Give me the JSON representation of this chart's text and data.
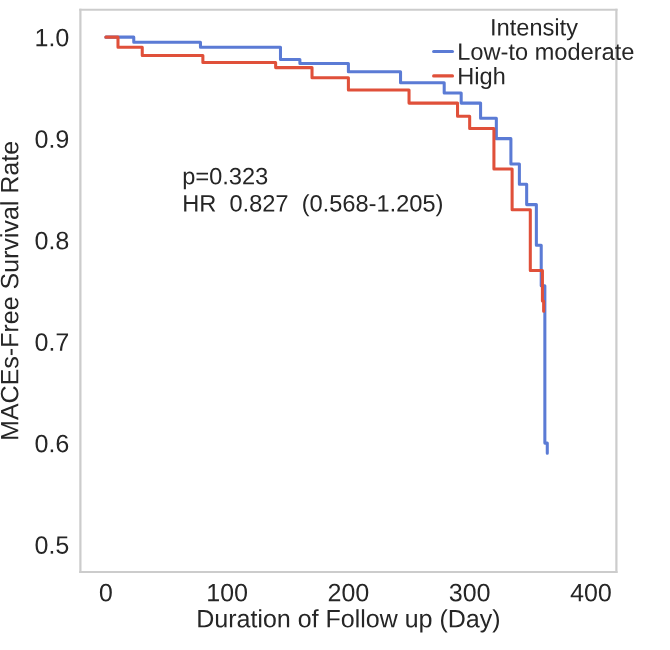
{
  "chart_data": {
    "type": "step",
    "xlabel": "Duration of Follow up (Day)",
    "ylabel": "MACEs-Free Survival Rate",
    "legend_title": "Intensity",
    "xlim": [
      -21,
      421
    ],
    "ylim": [
      0.473,
      1.027
    ],
    "xticks": [
      0,
      100,
      200,
      300,
      400
    ],
    "yticks": [
      0.5,
      0.6,
      0.7,
      0.8,
      0.9,
      {
        "value": 1.0,
        "label": "1.0"
      }
    ],
    "grid": false,
    "legend": "top right",
    "annotations": [
      "p=0.323\nHR  0.827  (0.568-1.205)"
    ],
    "series": [
      {
        "name": "Low-to moderate",
        "color": "#5b7bd5",
        "x": [
          0,
          23,
          78,
          144,
          160,
          200,
          243,
          279,
          293,
          309,
          322,
          334,
          341,
          347,
          355,
          359,
          362,
          364
        ],
        "values": [
          1.0,
          0.995,
          0.99,
          0.978,
          0.974,
          0.966,
          0.955,
          0.945,
          0.935,
          0.92,
          0.9,
          0.875,
          0.855,
          0.835,
          0.795,
          0.755,
          0.6,
          0.59
        ]
      },
      {
        "name": "High",
        "color": "#e0503a",
        "x": [
          0,
          10,
          30,
          80,
          140,
          170,
          200,
          250,
          290,
          300,
          320,
          335,
          350,
          360,
          361
        ],
        "values": [
          1.0,
          0.99,
          0.982,
          0.975,
          0.97,
          0.96,
          0.948,
          0.935,
          0.922,
          0.91,
          0.87,
          0.83,
          0.77,
          0.74,
          0.73
        ]
      }
    ]
  }
}
